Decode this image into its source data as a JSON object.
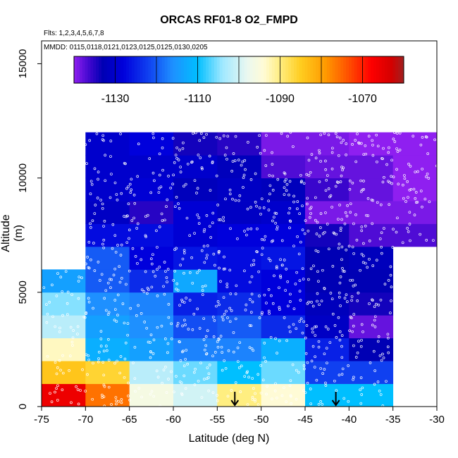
{
  "chart_data": {
    "type": "heatmap",
    "title": "ORCAS RF01-8 O2_FMPD",
    "flights_label": "Flts: 1,2,3,4,5,6,7,8",
    "dates_label": "MMDD: 0115,0118,0121,0123,0125,0125,0130,0205",
    "xlabel": "Latitude (deg N)",
    "ylabel": "Altitude (m)",
    "xlim": [
      -75,
      -30
    ],
    "ylim": [
      0,
      16000
    ],
    "x_ticks": [
      -75,
      -70,
      -65,
      -60,
      -55,
      -50,
      -45,
      -40,
      -35,
      -30
    ],
    "x_tick_labels": [
      "-75",
      "-70",
      "-65",
      "-60",
      "-55",
      "-50",
      "-45",
      "-40",
      "-35",
      "-30"
    ],
    "y_ticks": [
      0,
      5000,
      10000,
      15000
    ],
    "y_tick_labels": [
      "0",
      "5000",
      "10000",
      "15000"
    ],
    "colorbar": {
      "min": -1140,
      "max": -1060,
      "ticks": [
        -1130,
        -1110,
        -1090,
        -1070
      ],
      "tick_labels": [
        "-1130",
        "-1110",
        "-1090",
        "-1070"
      ],
      "stops": [
        {
          "v": -1140,
          "c": "#8f1ff0"
        },
        {
          "v": -1136,
          "c": "#3a06cc"
        },
        {
          "v": -1133,
          "c": "#0000b4"
        },
        {
          "v": -1128,
          "c": "#0000dc"
        },
        {
          "v": -1122,
          "c": "#1040f0"
        },
        {
          "v": -1116,
          "c": "#1e90ff"
        },
        {
          "v": -1110,
          "c": "#00bfff"
        },
        {
          "v": -1104,
          "c": "#a0e8ff"
        },
        {
          "v": -1098,
          "c": "#eaf8f0"
        },
        {
          "v": -1094,
          "c": "#fffbd6"
        },
        {
          "v": -1090,
          "c": "#ffee80"
        },
        {
          "v": -1085,
          "c": "#ffcd20"
        },
        {
          "v": -1079,
          "c": "#ff9a00"
        },
        {
          "v": -1073,
          "c": "#ff4a00"
        },
        {
          "v": -1068,
          "c": "#ff0000"
        },
        {
          "v": -1063,
          "c": "#d40000"
        },
        {
          "v": -1060,
          "c": "#a02020"
        }
      ]
    },
    "cell_x_width": 5,
    "cell_y_height": 1000,
    "cell_x_starts": [
      -75,
      -70,
      -65,
      -60,
      -55,
      -50,
      -45,
      -40,
      -35
    ],
    "cells": [
      {
        "alt_bin": [
          0,
          1000
        ],
        "values": [
          -1066,
          -1076,
          -1096,
          -1100,
          -1090,
          -1094,
          -1110,
          -1110,
          null
        ]
      },
      {
        "alt_bin": [
          1000,
          2000
        ],
        "values": [
          -1084,
          -1086,
          -1102,
          -1106,
          -1110,
          -1106,
          -1122,
          -1122,
          null
        ]
      },
      {
        "alt_bin": [
          2000,
          3000
        ],
        "values": [
          -1093,
          -1112,
          -1114,
          -1117,
          -1117,
          -1112,
          -1125,
          -1133,
          null
        ]
      },
      {
        "alt_bin": [
          3000,
          4000
        ],
        "values": [
          -1102,
          -1114,
          -1116,
          -1121,
          -1120,
          -1124,
          -1131,
          -1138,
          null
        ]
      },
      {
        "alt_bin": [
          4000,
          5000
        ],
        "values": [
          -1105,
          -1116,
          -1117,
          -1125,
          -1124,
          -1128,
          -1132,
          -1134,
          null
        ]
      },
      {
        "alt_bin": [
          5000,
          6000
        ],
        "values": [
          -1114,
          -1120,
          -1124,
          -1113,
          -1127,
          -1128,
          -1133,
          -1133,
          null
        ]
      },
      {
        "alt_bin": [
          6000,
          7000
        ],
        "values": [
          null,
          -1120,
          -1128,
          -1126,
          -1127,
          -1126,
          -1133,
          -1132,
          null
        ]
      },
      {
        "alt_bin": [
          7000,
          8000
        ],
        "values": [
          null,
          -1127,
          -1127,
          -1129,
          -1128,
          -1128,
          -1134,
          -1137,
          -1137
        ]
      },
      {
        "alt_bin": [
          8000,
          9000
        ],
        "values": [
          null,
          -1131,
          -1135,
          -1129,
          -1131,
          -1130,
          -1139,
          -1139,
          -1139
        ]
      },
      {
        "alt_bin": [
          9000,
          10000
        ],
        "values": [
          null,
          -1130,
          -1129,
          -1132,
          -1131,
          -1132,
          -1136,
          -1138,
          -1140
        ]
      },
      {
        "alt_bin": [
          10000,
          11000
        ],
        "values": [
          null,
          -1130,
          -1130,
          -1130,
          -1132,
          -1137,
          -1138,
          -1138,
          -1140
        ]
      },
      {
        "alt_bin": [
          11000,
          12000
        ],
        "values": [
          null,
          -1130,
          -1128,
          -1134,
          -1135,
          -1139,
          -1139,
          -1140,
          -1140
        ]
      }
    ],
    "arrows_latitude": [
      -53,
      -41.5
    ],
    "obs_point_color": "#ffffff"
  }
}
